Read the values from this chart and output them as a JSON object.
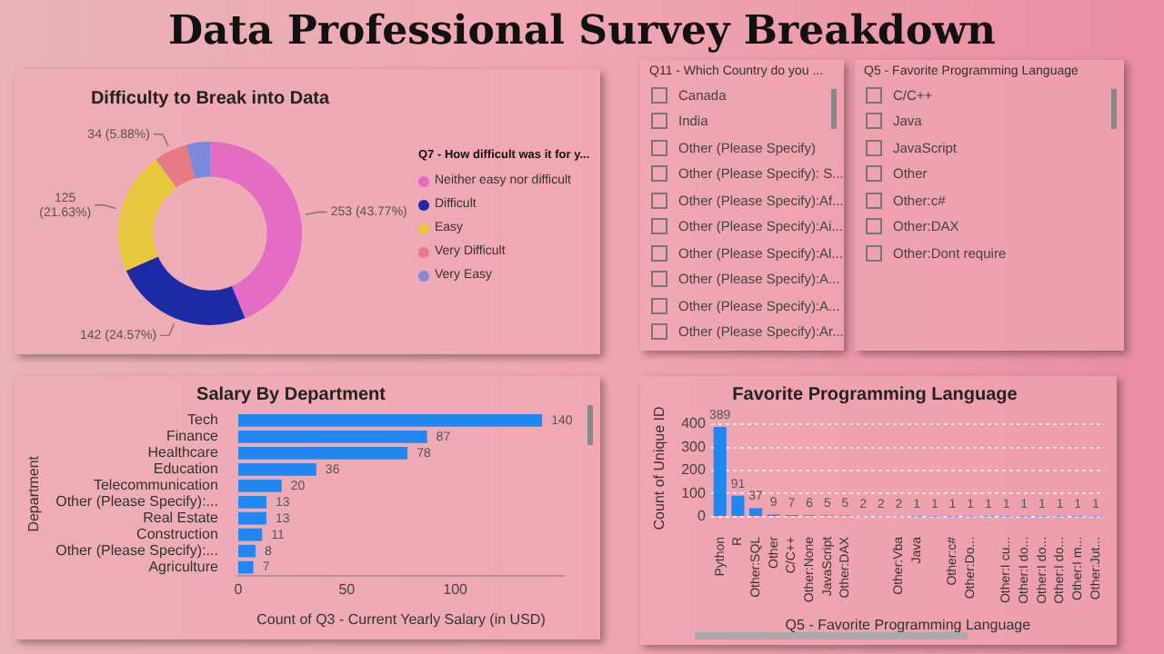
{
  "chart_data": [
    {
      "type": "other",
      "title": "Data Professional Survey Breakdown"
    },
    {
      "type": "donut",
      "title": "Difficulty to Break into Data",
      "legend_title": "Q7 - How difficult was it for y...",
      "legend": "right",
      "categories": [
        "Neither easy nor difficult",
        "Difficult",
        "Easy",
        "Very Difficult",
        "Very Easy"
      ],
      "values": [
        253,
        142,
        125,
        34,
        24
      ],
      "colors": [
        "#e46cc4",
        "#1c2aa6",
        "#e8c83c",
        "#e77a84",
        "#7c88d8"
      ],
      "value_labels": [
        "253 (43.77%)",
        "142 (24.57%)",
        "125 (21.63%)",
        "34 (5.88%)",
        null
      ]
    },
    {
      "type": "other",
      "title": "Q11 - Which Country do you ...",
      "annotations": [
        "Canada",
        "India",
        "Other (Please Specify)",
        "Other (Please Specify): S...",
        "Other (Please Specify):Af...",
        "Other (Please Specify):Ai...",
        "Other (Please Specify):Al...",
        "Other (Please Specify):A...",
        "Other (Please Specify):A...",
        "Other (Please Specify):Ar..."
      ]
    },
    {
      "type": "other",
      "title": "Q5 - Favorite Programming Language",
      "annotations": [
        "C/C++",
        "Java",
        "JavaScript",
        "Other",
        "Other:c#",
        "Other:DAX",
        "Other:Dont require"
      ]
    },
    {
      "type": "bar",
      "orientation": "horizontal",
      "title": "Salary By Department",
      "xlabel": "Count of Q3 - Current Yearly Salary (in USD)",
      "ylabel": "Department",
      "categories": [
        "Tech",
        "Finance",
        "Healthcare",
        "Education",
        "Telecommunication",
        "Other (Please Specify):...",
        "Real Estate",
        "Construction",
        "Other (Please Specify):...",
        "Agriculture"
      ],
      "values": [
        140,
        87,
        78,
        36,
        20,
        13,
        13,
        11,
        8,
        7
      ],
      "color": "#2188f2",
      "xlim": [
        0,
        150
      ],
      "xticks": [
        0,
        50,
        100
      ],
      "data_labels": true,
      "grid": false
    },
    {
      "type": "bar",
      "title": "Favorite Programming Language",
      "xlabel": "Q5 - Favorite Programming Language",
      "ylabel": "Count of Unique ID",
      "categories": [
        "Python",
        "R",
        "Other:SQL",
        "Other",
        "C/C++",
        "Other:None",
        "JavaScript",
        "Other:DAX",
        null,
        null,
        "Other:Vba",
        "Java",
        null,
        "Other:c#",
        "Other:Do...",
        null,
        "Other:I cu...",
        "Other:I do...",
        "Other:I do...",
        "Other:I do...",
        "Other:I m...",
        "Other:Jut..."
      ],
      "values": [
        389,
        91,
        37,
        9,
        7,
        6,
        5,
        5,
        2,
        2,
        2,
        1,
        1,
        1,
        1,
        1,
        1,
        1,
        1,
        1,
        1,
        1
      ],
      "color": "#2188f2",
      "ylim": [
        0,
        420
      ],
      "yticks": [
        0,
        100,
        200,
        300,
        400
      ],
      "data_labels": true,
      "grid": "y"
    }
  ]
}
